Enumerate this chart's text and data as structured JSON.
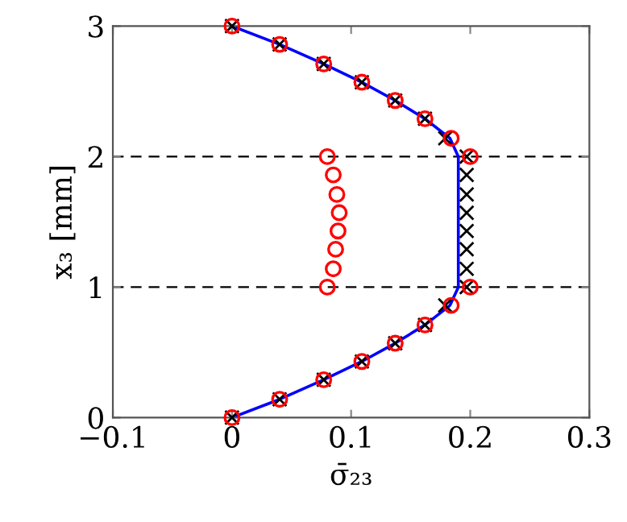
{
  "chart_data": {
    "type": "line",
    "xlabel": "σ̄₂₃",
    "ylabel": "x₃ [mm]",
    "xlim": [
      -0.1,
      0.3
    ],
    "xticks": [
      {
        "value": -0.1,
        "label": "−0.1"
      },
      0,
      0.1,
      0.2,
      0.3
    ],
    "ylim": [
      0,
      3
    ],
    "yticks": [
      0,
      1,
      2,
      3
    ],
    "grid": false,
    "legend": false,
    "ref_lines": [
      {
        "axis": "y",
        "value": 1,
        "color": "#000000",
        "line_style": "dashed"
      },
      {
        "axis": "y",
        "value": 2,
        "color": "#000000",
        "line_style": "dashed"
      }
    ],
    "series": [
      {
        "color": "#0000ff",
        "marker": "none",
        "line_style": "solid",
        "x": [
          0,
          0.04,
          0.077,
          0.109,
          0.137,
          0.162,
          0.183,
          0.19,
          0.19,
          0.183,
          0.162,
          0.137,
          0.109,
          0.077,
          0.04,
          0
        ],
        "values": [
          0,
          0.14,
          0.29,
          0.43,
          0.57,
          0.71,
          0.86,
          1,
          2,
          2.14,
          2.29,
          2.43,
          2.57,
          2.71,
          2.86,
          3
        ]
      },
      {
        "type": "scatter",
        "color": "#000000",
        "marker": "cross",
        "x": [
          0,
          0.04,
          0.077,
          0.109,
          0.137,
          0.162,
          0.179,
          0.197,
          0.197,
          0.197,
          0.197,
          0.197,
          0.197,
          0.197,
          0.197,
          0.179,
          0.162,
          0.137,
          0.109,
          0.077,
          0.04,
          0
        ],
        "values": [
          0,
          0.14,
          0.29,
          0.43,
          0.57,
          0.71,
          0.86,
          1,
          1.14,
          1.29,
          1.43,
          1.57,
          1.71,
          1.86,
          2,
          2.14,
          2.29,
          2.43,
          2.57,
          2.71,
          2.86,
          3
        ]
      },
      {
        "type": "scatter",
        "color": "#ff0000",
        "marker": "circle",
        "x": [
          0,
          0.04,
          0.077,
          0.109,
          0.137,
          0.162,
          0.184,
          0.2,
          0.08,
          0.085,
          0.087,
          0.089,
          0.09,
          0.088,
          0.085,
          0.08,
          0.2,
          0.184,
          0.162,
          0.137,
          0.109,
          0.077,
          0.04,
          0
        ],
        "values": [
          0,
          0.14,
          0.29,
          0.43,
          0.57,
          0.71,
          0.86,
          1,
          1,
          1.14,
          1.29,
          1.43,
          1.57,
          1.71,
          1.86,
          2,
          2,
          2.14,
          2.29,
          2.43,
          2.57,
          2.71,
          2.86,
          3
        ]
      }
    ]
  }
}
